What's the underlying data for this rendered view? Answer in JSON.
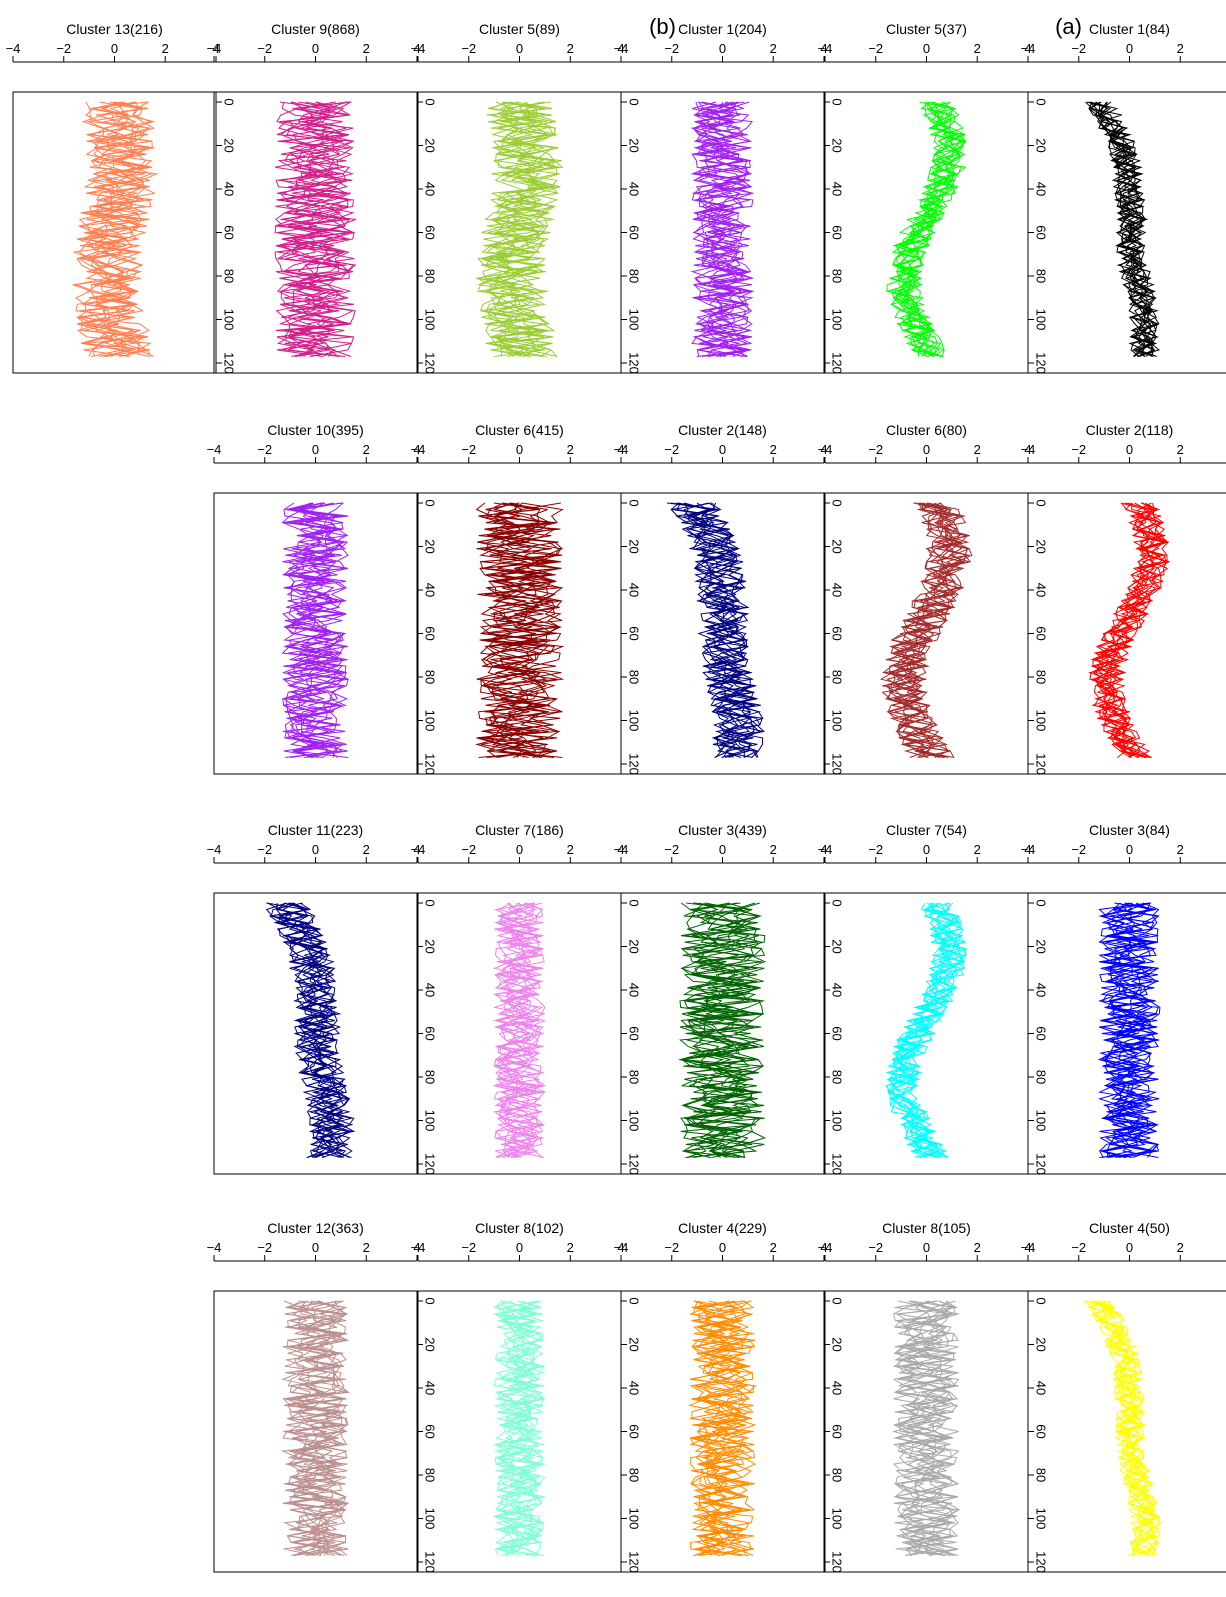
{
  "panel_labels": [
    "(a)",
    "(b)"
  ],
  "chart_data": {
    "type": "line",
    "orientation": "vertical profiles (value on horizontal axis, index on vertical axis)",
    "xlim": [
      -4,
      4
    ],
    "x_ticks": [
      -4,
      -2,
      0,
      2,
      4
    ],
    "ylim": [
      0,
      120
    ],
    "y_ticks": [
      0,
      20,
      40,
      60,
      80,
      100,
      120
    ],
    "grid": false,
    "columns": [
      {
        "group": "b",
        "panels": [
          {
            "title": "Cluster 13(216)",
            "color": "#FF7F50",
            "amplitude": 1.4,
            "shape": "mid"
          },
          null,
          null,
          null
        ]
      },
      {
        "group": "b",
        "panels": [
          {
            "title": "Cluster 9(868)",
            "color": "#D11F8C",
            "amplitude": 1.6,
            "shape": "flat"
          },
          {
            "title": "Cluster 10(395)",
            "color": "#A020F0",
            "amplitude": 1.3,
            "shape": "flat"
          },
          {
            "title": "Cluster 11(223)",
            "color": "#000080",
            "amplitude": 0.9,
            "shape": "rise"
          },
          {
            "title": "Cluster 12(363)",
            "color": "#BC8F8F",
            "amplitude": 1.3,
            "shape": "flat"
          }
        ]
      },
      {
        "group": "b",
        "panels": [
          {
            "title": "Cluster 5(89)",
            "color": "#9ACD32",
            "amplitude": 1.4,
            "shape": "mid"
          },
          {
            "title": "Cluster 6(415)",
            "color": "#8B0000",
            "amplitude": 1.7,
            "shape": "flat"
          },
          {
            "title": "Cluster 7(186)",
            "color": "#EE82EE",
            "amplitude": 1.0,
            "shape": "flat"
          },
          {
            "title": "Cluster 8(102)",
            "color": "#7FFFD4",
            "amplitude": 1.0,
            "shape": "flat"
          }
        ]
      },
      {
        "group": "b",
        "panels": [
          {
            "title": "Cluster 1(204)",
            "color": "#A020F0",
            "amplitude": 1.2,
            "shape": "flat"
          },
          {
            "title": "Cluster 2(148)",
            "color": "#000080",
            "amplitude": 1.0,
            "shape": "rise"
          },
          {
            "title": "Cluster 3(439)",
            "color": "#006400",
            "amplitude": 1.7,
            "shape": "flat"
          },
          {
            "title": "Cluster 4(229)",
            "color": "#FF8C00",
            "amplitude": 1.3,
            "shape": "flat"
          }
        ]
      },
      {
        "group": "a",
        "panels": [
          {
            "title": "Cluster 5(37)",
            "color": "#00FF00",
            "amplitude": 0.7,
            "shape": "wave"
          },
          {
            "title": "Cluster 6(80)",
            "color": "#A52A2A",
            "amplitude": 0.9,
            "shape": "wave"
          },
          {
            "title": "Cluster 7(54)",
            "color": "#00FFFF",
            "amplitude": 0.7,
            "shape": "wave"
          },
          {
            "title": "Cluster 8(105)",
            "color": "#A9A9A9",
            "amplitude": 1.3,
            "shape": "flat"
          }
        ]
      },
      {
        "group": "a",
        "panels": [
          {
            "title": "Cluster 1(84)",
            "color": "#000000",
            "amplitude": 0.6,
            "shape": "rise"
          },
          {
            "title": "Cluster 2(118)",
            "color": "#FF0000",
            "amplitude": 0.7,
            "shape": "wave"
          },
          {
            "title": "Cluster 3(84)",
            "color": "#0000FF",
            "amplitude": 1.2,
            "shape": "flat"
          },
          {
            "title": "Cluster 4(50)",
            "color": "#FFFF00",
            "amplitude": 0.6,
            "shape": "rise"
          }
        ]
      }
    ]
  }
}
